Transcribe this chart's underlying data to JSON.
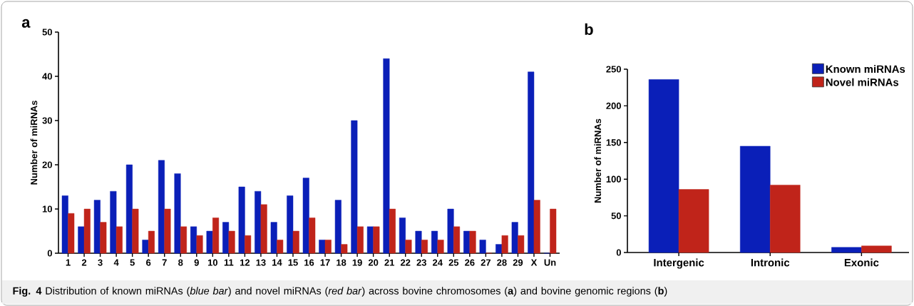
{
  "chart_data": [
    {
      "type": "bar",
      "title": "a",
      "ylabel": "Number of miRNAs",
      "categories": [
        "1",
        "2",
        "3",
        "4",
        "5",
        "6",
        "7",
        "8",
        "9",
        "10",
        "11",
        "12",
        "13",
        "14",
        "15",
        "16",
        "17",
        "18",
        "19",
        "20",
        "21",
        "22",
        "23",
        "24",
        "25",
        "26",
        "27",
        "28",
        "29",
        "X",
        "Un"
      ],
      "series": [
        {
          "color": "#0a1fb8",
          "values": [
            13,
            6,
            12,
            14,
            20,
            3,
            21,
            18,
            6,
            5,
            7,
            15,
            14,
            7,
            13,
            17,
            3,
            12,
            30,
            6,
            44,
            8,
            5,
            5,
            10,
            5,
            3,
            2,
            7,
            41,
            0
          ]
        },
        {
          "color": "#c0241a",
          "values": [
            9,
            10,
            7,
            6,
            10,
            5,
            10,
            6,
            4,
            8,
            5,
            4,
            11,
            3,
            5,
            8,
            3,
            2,
            6,
            6,
            10,
            3,
            3,
            3,
            6,
            5,
            0,
            4,
            4,
            12,
            10
          ]
        }
      ],
      "ylim": [
        0,
        50
      ],
      "yticks": [
        0,
        10,
        20,
        30,
        40,
        50
      ],
      "grid": false,
      "annotations": [
        "**Fig. 4** Distribution of known miRNAs (*blue bar*) and novel miRNAs (*red bar*) across bovine chromosomes (**a**) and bovine genomic regions (**b**)"
      ]
    },
    {
      "type": "bar",
      "title": "b",
      "ylabel": "Number of miRNAs",
      "categories": [
        "Intergenic",
        "Intronic",
        "Exonic"
      ],
      "series": [
        {
          "name": "Known miRNAs",
          "color": "#0a1fb8",
          "values": [
            236,
            145,
            7
          ]
        },
        {
          "name": "Novel miRNAs",
          "color": "#c0241a",
          "values": [
            86,
            92,
            9
          ]
        }
      ],
      "ylim": [
        0,
        250
      ],
      "yticks": [
        0,
        50,
        100,
        150,
        200,
        250
      ],
      "grid": false,
      "legend": "top right"
    }
  ]
}
